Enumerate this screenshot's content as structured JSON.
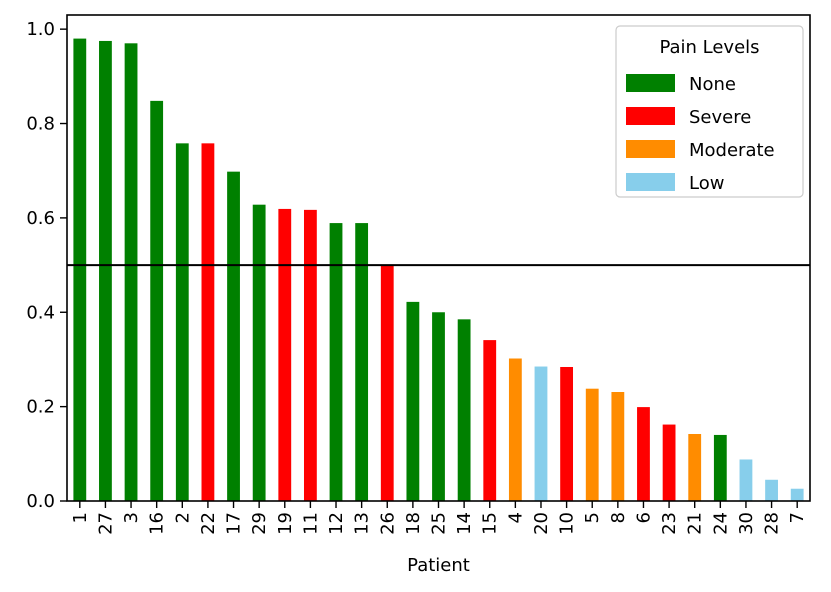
{
  "chart_data": {
    "type": "bar",
    "xlabel": "Patient",
    "ylabel": "",
    "ylim": [
      0,
      1.03
    ],
    "yticks": [
      "0.0",
      "0.2",
      "0.4",
      "0.6",
      "0.8",
      "1.0"
    ],
    "reference_line": 0.5,
    "legend": {
      "title": "Pain Levels",
      "placement": "top-right",
      "entries": [
        {
          "label": "None",
          "color": "#008000"
        },
        {
          "label": "Severe",
          "color": "#ff0000"
        },
        {
          "label": "Moderate",
          "color": "#ff8c00"
        },
        {
          "label": "Low",
          "color": "#87ceeb"
        }
      ]
    },
    "categories": [
      "1",
      "27",
      "3",
      "16",
      "2",
      "22",
      "17",
      "29",
      "19",
      "11",
      "12",
      "13",
      "26",
      "18",
      "25",
      "14",
      "15",
      "4",
      "20",
      "10",
      "5",
      "8",
      "6",
      "23",
      "21",
      "24",
      "30",
      "28",
      "7"
    ],
    "values": [
      0.98,
      0.975,
      0.97,
      0.848,
      0.758,
      0.758,
      0.698,
      0.628,
      0.619,
      0.617,
      0.589,
      0.589,
      0.5,
      0.422,
      0.4,
      0.385,
      0.341,
      0.302,
      0.285,
      0.284,
      0.238,
      0.231,
      0.199,
      0.162,
      0.142,
      0.14,
      0.088,
      0.045,
      0.026
    ],
    "levels": [
      "None",
      "None",
      "None",
      "None",
      "None",
      "Severe",
      "None",
      "None",
      "Severe",
      "Severe",
      "None",
      "None",
      "Severe",
      "None",
      "None",
      "None",
      "Severe",
      "Moderate",
      "Low",
      "Severe",
      "Moderate",
      "Moderate",
      "Severe",
      "Severe",
      "Moderate",
      "None",
      "Low",
      "Low",
      "Low"
    ]
  }
}
